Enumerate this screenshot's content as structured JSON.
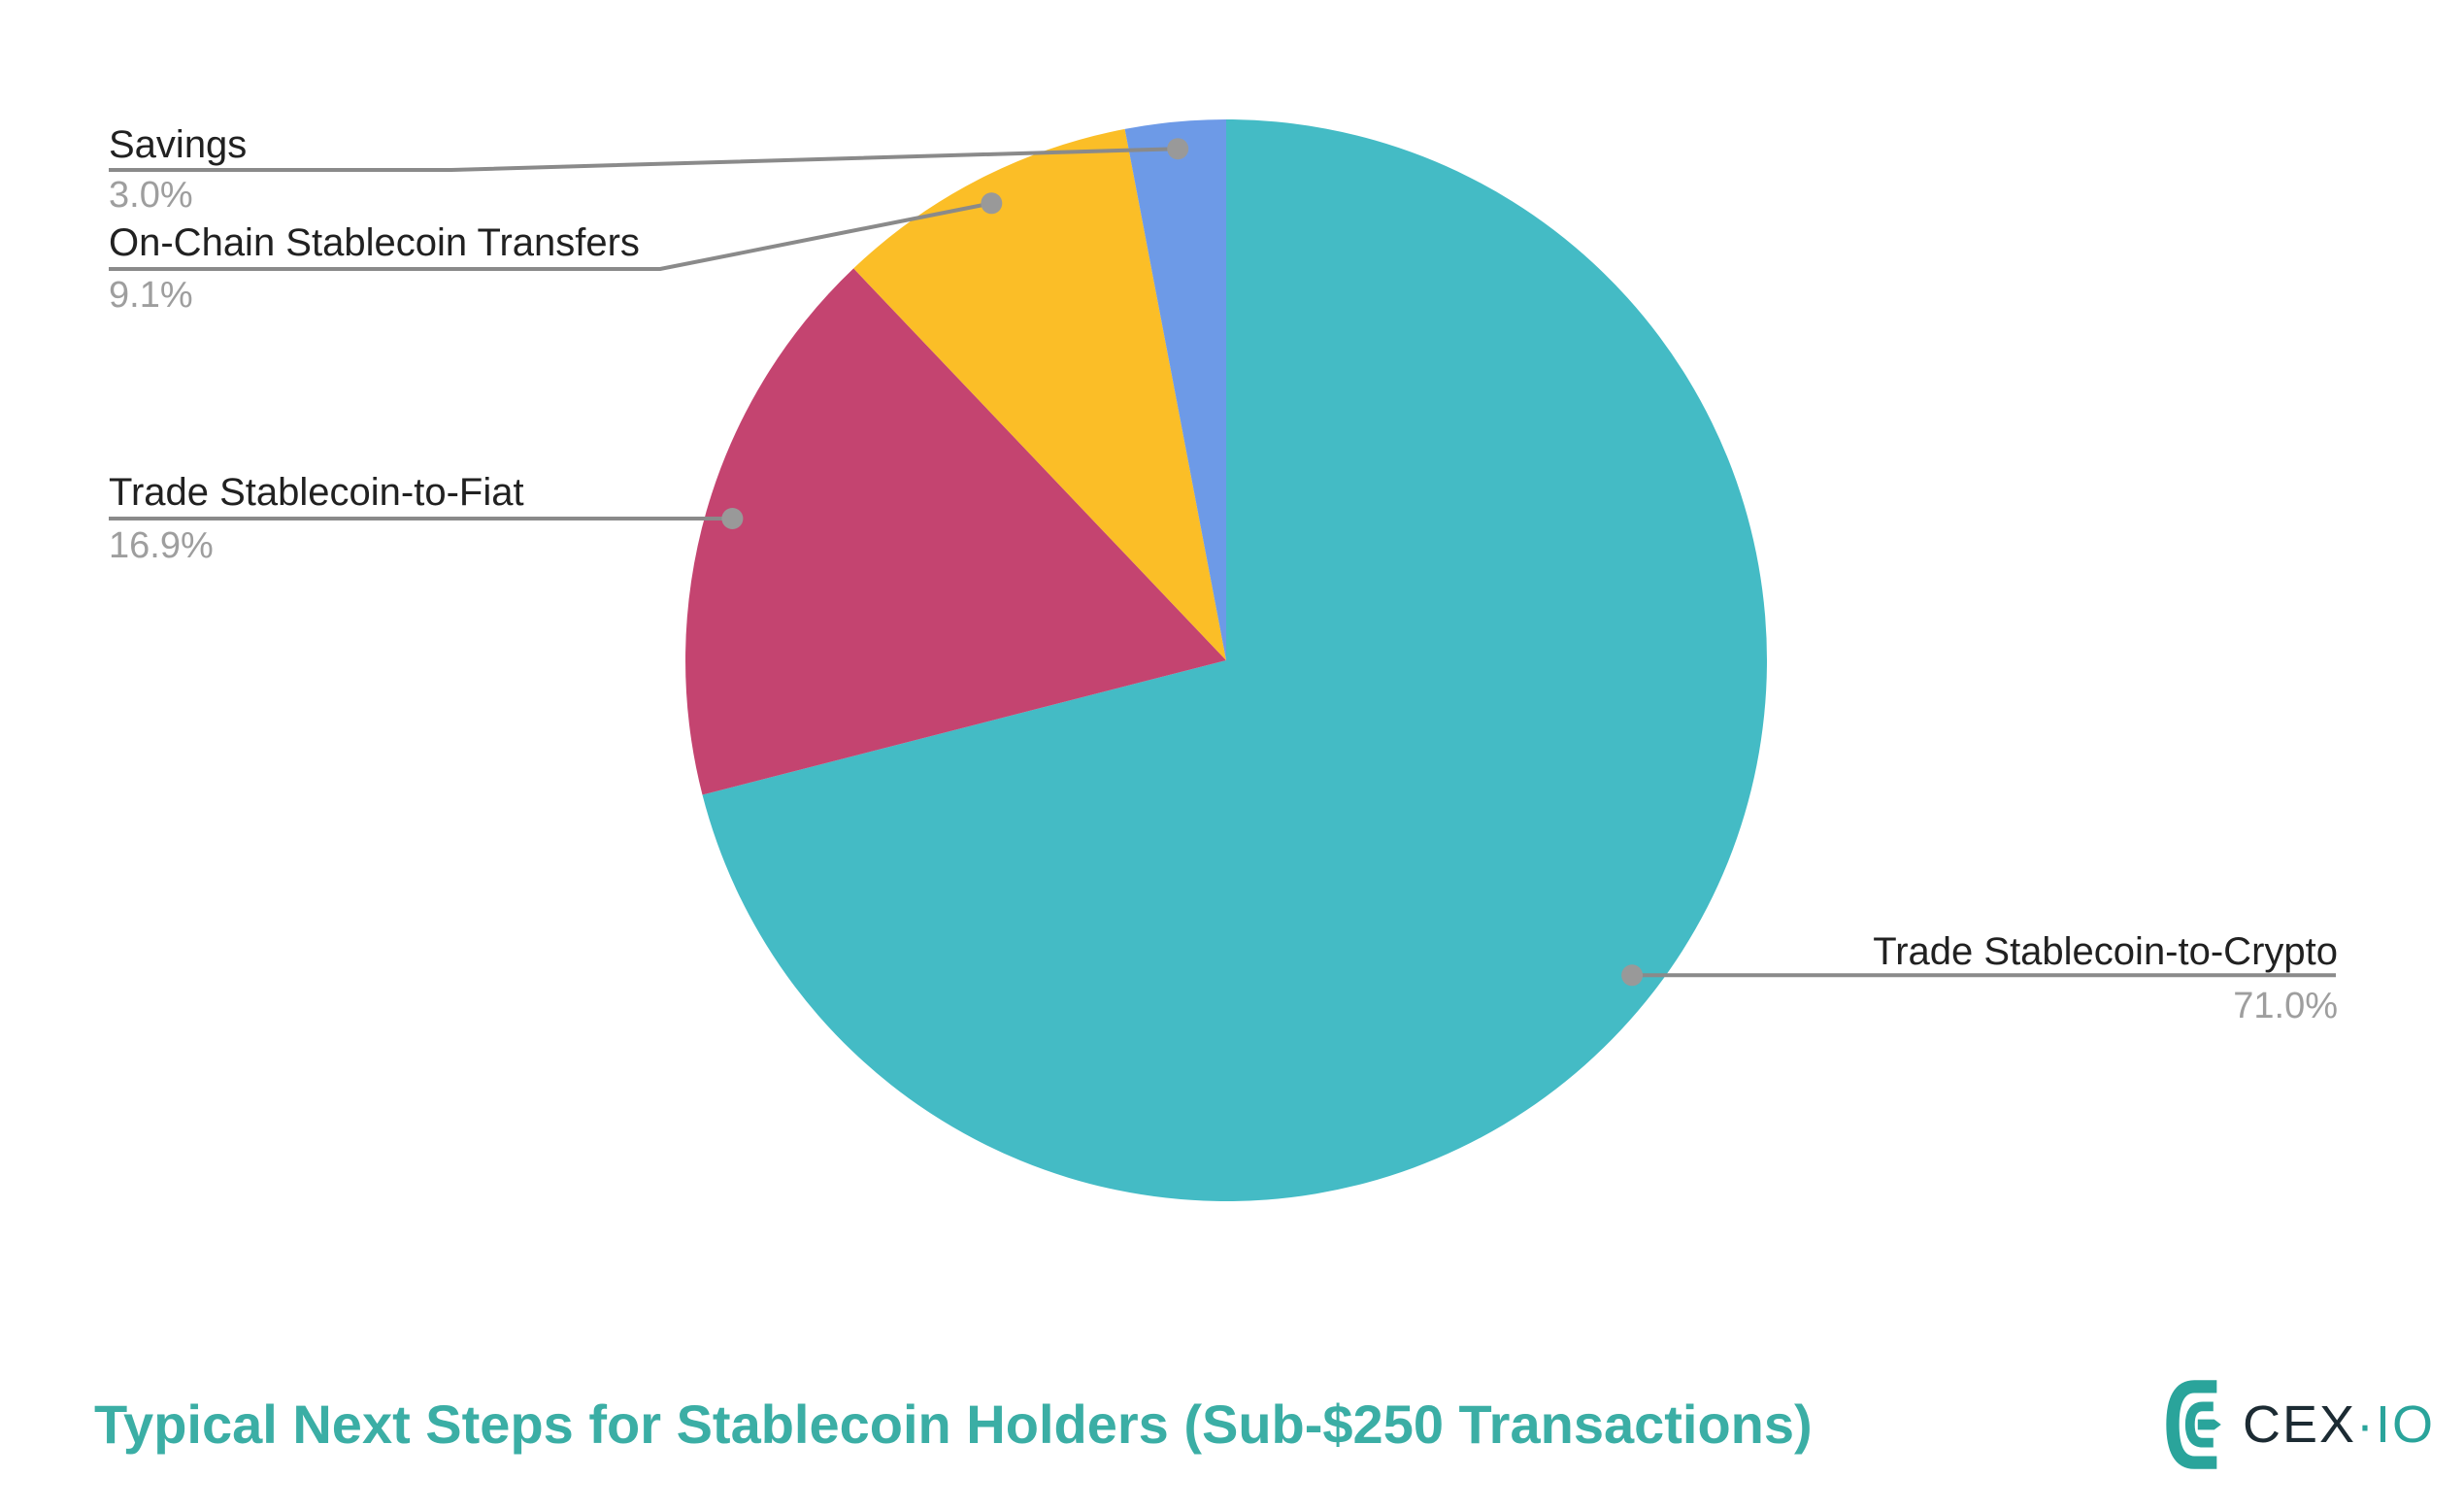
{
  "chart_data": {
    "type": "pie",
    "title": "Typical Next Steps for Stablecoin Holders (Sub-$250 Transactions)",
    "start_angle_deg": 0,
    "direction": "clockwise",
    "legend_position": "callout-labels",
    "slices": [
      {
        "label": "Trade Stablecoin-to-Crypto",
        "value": 71.0,
        "display": "71.0%",
        "color": "#44BBC5"
      },
      {
        "label": "Trade Stablecoin-to-Fiat",
        "value": 16.9,
        "display": "16.9%",
        "color": "#C44470"
      },
      {
        "label": "On-Chain Stablecoin Transfers",
        "value": 9.1,
        "display": "9.1%",
        "color": "#FBBE27"
      },
      {
        "label": "Savings",
        "value": 3.0,
        "display": "3.0%",
        "color": "#6D9AE7"
      }
    ],
    "label_text_color": "#212121",
    "percent_text_color": "#9E9E9E",
    "leader_line_color": "#8A8A8A",
    "leader_dot_color": "#999999",
    "background_color": "#FFFFFF"
  },
  "footer": {
    "title_color": "#3BAEA5",
    "logo": {
      "text_primary": "CEX",
      "separator": "·",
      "text_secondary": "IO",
      "mark_color": "#2AA49B",
      "text_primary_color": "#1C2B33",
      "text_secondary_color": "#2AA49B"
    }
  }
}
